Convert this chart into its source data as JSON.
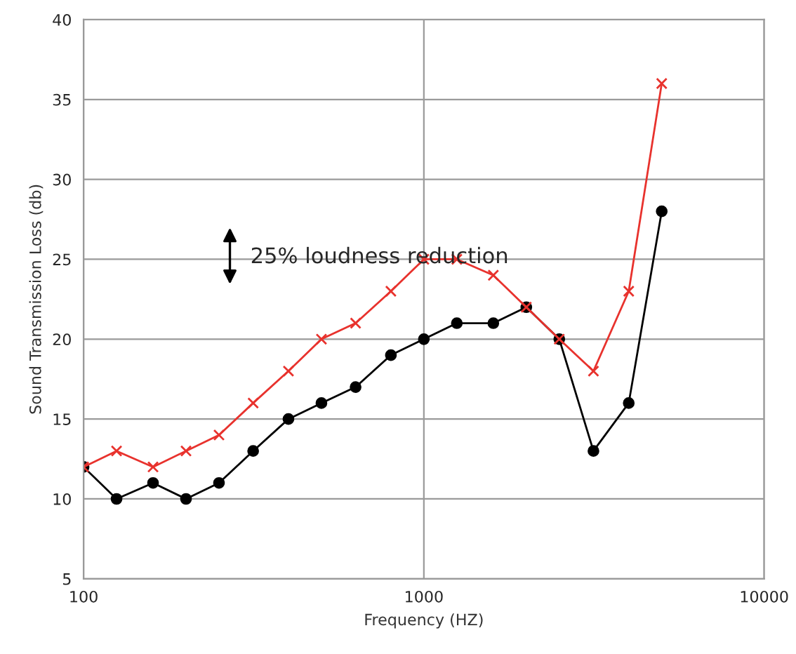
{
  "chart_data": {
    "type": "line",
    "xlabel": "Frequency (HZ)",
    "ylabel": "Sound Transmission Loss (db)",
    "x": [
      100,
      125,
      160,
      200,
      250,
      315,
      400,
      500,
      630,
      800,
      1000,
      1250,
      1600,
      2000,
      2500,
      3150,
      4000,
      5000
    ],
    "series": [
      {
        "color": "#000000",
        "marker": "circle",
        "values": [
          12,
          10,
          11,
          10,
          11,
          13,
          15,
          16,
          17,
          19,
          20,
          21,
          21,
          22,
          20,
          13,
          16,
          28
        ]
      },
      {
        "color": "#e8322d",
        "marker": "cross",
        "values": [
          12,
          13,
          12,
          13,
          14,
          16,
          18,
          20,
          21,
          23,
          25,
          25,
          24,
          22,
          20,
          18,
          23,
          36
        ]
      }
    ],
    "log": "x",
    "xlim": [
      100,
      10000
    ],
    "xticks": [
      100,
      1000,
      10000
    ],
    "ylim": [
      5,
      40
    ],
    "yticks": [
      5,
      10,
      15,
      20,
      25,
      30,
      35,
      40
    ],
    "grid": true,
    "legend": false,
    "line_style": "solid",
    "annotations": [
      "25% loudness reduction"
    ]
  }
}
